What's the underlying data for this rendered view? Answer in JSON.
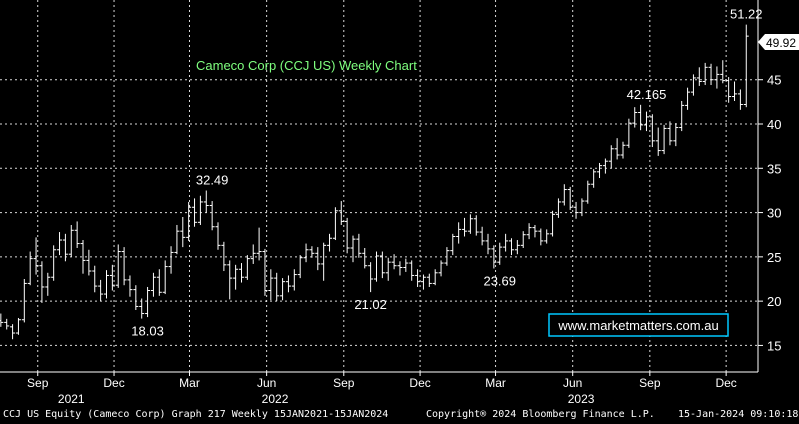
{
  "footer": {
    "left": "CCJ US Equity (Cameco Corp) Graph 217  Weekly 15JAN2021-15JAN2024",
    "center": "Copyright® 2024 Bloomberg Finance L.P.",
    "right": "15-Jan-2024 09:10:18"
  },
  "chart_data": {
    "type": "ohlc-bar",
    "title": "Cameco Corp  (CCJ US) Weekly Chart",
    "watermark": "www.marketmatters.com.au",
    "ylim": [
      12,
      54
    ],
    "xlim": [
      "2021-08-01",
      "2024-01-22"
    ],
    "yticks": [
      15,
      20,
      25,
      30,
      35,
      40,
      45
    ],
    "grid": true,
    "last_price": 49.92,
    "x_month_ticks": [
      {
        "label": "Sep",
        "date": "2021-09-15"
      },
      {
        "label": "Dec",
        "date": "2021-12-15"
      },
      {
        "label": "Mar",
        "date": "2022-03-15"
      },
      {
        "label": "Jun",
        "date": "2022-06-15"
      },
      {
        "label": "Sep",
        "date": "2022-09-15"
      },
      {
        "label": "Dec",
        "date": "2022-12-15"
      },
      {
        "label": "Mar",
        "date": "2023-03-15"
      },
      {
        "label": "Jun",
        "date": "2023-06-15"
      },
      {
        "label": "Sep",
        "date": "2023-09-15"
      },
      {
        "label": "Dec",
        "date": "2023-12-15"
      }
    ],
    "x_year_ticks": [
      {
        "label": "2021",
        "date": "2021-10-25"
      },
      {
        "label": "2022",
        "date": "2022-06-25"
      },
      {
        "label": "2023",
        "date": "2023-06-25"
      }
    ],
    "annotations": [
      {
        "text": "32.49",
        "date": "2022-04-11",
        "value": 32.49,
        "position": "above"
      },
      {
        "text": "18.03",
        "date": "2022-01-24",
        "value": 18.03,
        "position": "below"
      },
      {
        "text": "21.02",
        "date": "2022-10-17",
        "value": 21.02,
        "position": "below"
      },
      {
        "text": "23.69",
        "date": "2023-03-20",
        "value": 23.69,
        "position": "below"
      },
      {
        "text": "42.165",
        "date": "2023-09-11",
        "value": 42.165,
        "position": "above"
      },
      {
        "text": "51.22",
        "date": "2024-01-08",
        "value": 51.22,
        "position": "above"
      }
    ],
    "ohlc": [
      [
        "2021-08-02",
        17.8,
        18.6,
        17.1,
        17.6
      ],
      [
        "2021-08-09",
        17.6,
        18.0,
        16.8,
        17.2
      ],
      [
        "2021-08-16",
        17.1,
        17.4,
        15.7,
        16.4
      ],
      [
        "2021-08-23",
        16.4,
        18.1,
        16.2,
        17.9
      ],
      [
        "2021-08-30",
        17.9,
        22.5,
        17.6,
        22.0
      ],
      [
        "2021-09-06",
        22.0,
        25.6,
        21.8,
        24.8
      ],
      [
        "2021-09-13",
        24.8,
        27.2,
        23.0,
        24.0
      ],
      [
        "2021-09-20",
        24.0,
        24.5,
        19.8,
        21.6
      ],
      [
        "2021-09-27",
        21.6,
        23.2,
        20.6,
        22.7
      ],
      [
        "2021-10-04",
        22.7,
        26.3,
        22.3,
        25.8
      ],
      [
        "2021-10-11",
        25.8,
        27.8,
        25.2,
        26.9
      ],
      [
        "2021-10-18",
        26.9,
        27.6,
        24.5,
        25.3
      ],
      [
        "2021-10-25",
        25.3,
        28.6,
        25.0,
        28.0
      ],
      [
        "2021-11-01",
        28.0,
        29.0,
        26.0,
        26.5
      ],
      [
        "2021-11-08",
        26.5,
        26.9,
        23.1,
        24.6
      ],
      [
        "2021-11-15",
        24.6,
        25.8,
        22.9,
        23.4
      ],
      [
        "2021-11-22",
        23.4,
        24.0,
        21.0,
        21.7
      ],
      [
        "2021-11-29",
        21.7,
        22.4,
        20.0,
        20.8
      ],
      [
        "2021-12-06",
        20.8,
        23.5,
        20.3,
        22.9
      ],
      [
        "2021-12-13",
        22.9,
        24.1,
        21.2,
        21.8
      ],
      [
        "2021-12-20",
        21.8,
        26.4,
        21.5,
        25.6
      ],
      [
        "2021-12-27",
        25.6,
        26.1,
        21.8,
        22.4
      ],
      [
        "2022-01-03",
        22.4,
        22.9,
        20.5,
        21.3
      ],
      [
        "2022-01-10",
        21.3,
        21.8,
        19.0,
        19.4
      ],
      [
        "2022-01-17",
        19.4,
        20.3,
        18.03,
        18.6
      ],
      [
        "2022-01-24",
        18.6,
        21.6,
        18.2,
        21.2
      ],
      [
        "2022-01-31",
        21.2,
        23.2,
        20.5,
        22.7
      ],
      [
        "2022-02-07",
        22.7,
        23.6,
        20.6,
        21.0
      ],
      [
        "2022-02-14",
        21.0,
        24.6,
        20.8,
        23.9
      ],
      [
        "2022-02-21",
        23.9,
        26.2,
        23.1,
        25.5
      ],
      [
        "2022-02-28",
        25.5,
        28.6,
        25.3,
        27.9
      ],
      [
        "2022-03-07",
        27.9,
        29.5,
        26.1,
        27.2
      ],
      [
        "2022-03-14",
        27.2,
        31.2,
        26.8,
        30.6
      ],
      [
        "2022-03-21",
        30.6,
        31.6,
        28.4,
        28.9
      ],
      [
        "2022-03-28",
        28.9,
        31.9,
        28.6,
        31.2
      ],
      [
        "2022-04-04",
        31.2,
        32.49,
        30.0,
        30.8
      ],
      [
        "2022-04-11",
        30.8,
        31.3,
        28.0,
        28.4
      ],
      [
        "2022-04-18",
        28.4,
        28.9,
        25.8,
        26.3
      ],
      [
        "2022-04-25",
        26.3,
        26.7,
        23.4,
        24.1
      ],
      [
        "2022-05-02",
        24.1,
        24.6,
        20.2,
        22.6
      ],
      [
        "2022-05-09",
        22.6,
        24.1,
        21.3,
        23.6
      ],
      [
        "2022-05-16",
        23.6,
        24.3,
        22.1,
        22.7
      ],
      [
        "2022-05-23",
        22.7,
        25.2,
        22.4,
        24.8
      ],
      [
        "2022-05-30",
        24.8,
        26.4,
        24.2,
        25.4
      ],
      [
        "2022-06-06",
        25.4,
        28.3,
        24.6,
        25.6
      ],
      [
        "2022-06-13",
        25.6,
        25.9,
        20.6,
        21.2
      ],
      [
        "2022-06-20",
        21.2,
        23.6,
        20.1,
        22.6
      ],
      [
        "2022-06-27",
        22.6,
        23.2,
        20.0,
        20.6
      ],
      [
        "2022-07-04",
        20.6,
        22.6,
        20.1,
        22.2
      ],
      [
        "2022-07-11",
        22.2,
        22.9,
        21.0,
        21.7
      ],
      [
        "2022-07-18",
        21.7,
        23.6,
        21.2,
        23.0
      ],
      [
        "2022-07-25",
        23.0,
        25.2,
        22.6,
        24.9
      ],
      [
        "2022-08-01",
        24.9,
        26.5,
        24.4,
        25.8
      ],
      [
        "2022-08-08",
        25.8,
        26.2,
        24.9,
        25.4
      ],
      [
        "2022-08-15",
        25.4,
        26.1,
        23.5,
        24.2
      ],
      [
        "2022-08-22",
        24.2,
        26.6,
        22.3,
        26.3
      ],
      [
        "2022-08-29",
        26.3,
        27.6,
        25.6,
        27.1
      ],
      [
        "2022-09-05",
        27.1,
        30.6,
        26.9,
        30.2
      ],
      [
        "2022-09-12",
        30.2,
        31.3,
        28.6,
        29.0
      ],
      [
        "2022-09-19",
        29.0,
        29.4,
        25.4,
        26.0
      ],
      [
        "2022-09-26",
        26.0,
        27.4,
        24.4,
        27.0
      ],
      [
        "2022-10-03",
        27.0,
        27.6,
        24.9,
        25.4
      ],
      [
        "2022-10-10",
        25.4,
        26.0,
        23.7,
        24.0
      ],
      [
        "2022-10-17",
        24.0,
        24.4,
        21.02,
        22.5
      ],
      [
        "2022-10-24",
        22.5,
        25.6,
        22.2,
        25.1
      ],
      [
        "2022-10-31",
        25.1,
        25.6,
        22.6,
        23.2
      ],
      [
        "2022-11-07",
        23.2,
        24.9,
        22.3,
        24.4
      ],
      [
        "2022-11-14",
        24.4,
        25.3,
        23.6,
        24.0
      ],
      [
        "2022-11-21",
        24.0,
        24.5,
        22.9,
        23.8
      ],
      [
        "2022-11-28",
        23.8,
        24.8,
        23.3,
        24.3
      ],
      [
        "2022-12-05",
        24.3,
        24.6,
        22.3,
        22.9
      ],
      [
        "2022-12-12",
        22.9,
        23.6,
        21.6,
        22.2
      ],
      [
        "2022-12-19",
        22.2,
        23.0,
        21.3,
        22.7
      ],
      [
        "2022-12-26",
        22.7,
        23.1,
        21.6,
        22.0
      ],
      [
        "2023-01-02",
        22.0,
        23.6,
        21.8,
        23.2
      ],
      [
        "2023-01-09",
        23.2,
        24.6,
        22.8,
        24.3
      ],
      [
        "2023-01-16",
        24.3,
        26.1,
        24.0,
        25.7
      ],
      [
        "2023-01-23",
        25.7,
        27.6,
        25.2,
        27.3
      ],
      [
        "2023-01-30",
        27.3,
        28.9,
        26.5,
        28.1
      ],
      [
        "2023-02-06",
        28.1,
        29.4,
        27.3,
        27.9
      ],
      [
        "2023-02-13",
        27.9,
        29.8,
        27.6,
        29.3
      ],
      [
        "2023-02-20",
        29.3,
        29.7,
        27.4,
        27.8
      ],
      [
        "2023-02-27",
        27.8,
        28.4,
        26.3,
        26.8
      ],
      [
        "2023-03-06",
        26.8,
        27.6,
        25.3,
        25.9
      ],
      [
        "2023-03-13",
        25.9,
        26.3,
        23.69,
        24.4
      ],
      [
        "2023-03-20",
        24.4,
        26.6,
        24.1,
        26.1
      ],
      [
        "2023-03-27",
        26.1,
        27.6,
        25.6,
        26.8
      ],
      [
        "2023-04-03",
        26.8,
        27.1,
        25.2,
        25.8
      ],
      [
        "2023-04-10",
        25.8,
        26.9,
        25.3,
        26.3
      ],
      [
        "2023-04-17",
        26.3,
        27.9,
        26.0,
        27.5
      ],
      [
        "2023-04-24",
        27.5,
        28.8,
        27.0,
        28.3
      ],
      [
        "2023-05-01",
        28.3,
        28.6,
        27.2,
        27.9
      ],
      [
        "2023-05-08",
        27.9,
        28.2,
        26.3,
        26.8
      ],
      [
        "2023-05-15",
        26.8,
        28.1,
        26.5,
        27.6
      ],
      [
        "2023-05-22",
        27.6,
        30.2,
        27.3,
        29.8
      ],
      [
        "2023-05-29",
        29.8,
        31.6,
        29.4,
        31.2
      ],
      [
        "2023-06-05",
        31.2,
        33.2,
        30.8,
        32.6
      ],
      [
        "2023-06-12",
        32.6,
        32.9,
        30.3,
        30.6
      ],
      [
        "2023-06-19",
        30.6,
        31.2,
        29.3,
        30.0
      ],
      [
        "2023-06-26",
        30.0,
        31.6,
        29.6,
        31.3
      ],
      [
        "2023-07-03",
        31.3,
        33.6,
        31.0,
        33.2
      ],
      [
        "2023-07-10",
        33.2,
        34.9,
        32.8,
        34.6
      ],
      [
        "2023-07-17",
        34.6,
        35.6,
        33.9,
        35.3
      ],
      [
        "2023-07-24",
        35.3,
        36.1,
        34.4,
        35.8
      ],
      [
        "2023-07-31",
        35.8,
        37.6,
        35.0,
        37.2
      ],
      [
        "2023-08-07",
        37.2,
        38.4,
        36.0,
        36.5
      ],
      [
        "2023-08-14",
        36.5,
        38.0,
        36.1,
        37.6
      ],
      [
        "2023-08-21",
        37.6,
        40.6,
        37.3,
        40.1
      ],
      [
        "2023-08-28",
        40.1,
        41.9,
        39.6,
        41.3
      ],
      [
        "2023-09-04",
        41.3,
        42.165,
        39.3,
        39.9
      ],
      [
        "2023-09-11",
        39.9,
        41.4,
        39.2,
        40.8
      ],
      [
        "2023-09-18",
        40.8,
        41.1,
        37.4,
        38.1
      ],
      [
        "2023-09-25",
        38.1,
        39.6,
        36.4,
        37.0
      ],
      [
        "2023-10-02",
        37.0,
        39.9,
        36.6,
        39.5
      ],
      [
        "2023-10-09",
        39.5,
        40.3,
        37.6,
        38.1
      ],
      [
        "2023-10-16",
        38.1,
        40.1,
        37.5,
        39.6
      ],
      [
        "2023-10-23",
        39.6,
        42.6,
        39.2,
        42.1
      ],
      [
        "2023-10-30",
        42.1,
        44.1,
        41.6,
        43.6
      ],
      [
        "2023-11-06",
        43.6,
        45.6,
        43.2,
        45.2
      ],
      [
        "2023-11-13",
        45.2,
        46.4,
        44.3,
        44.8
      ],
      [
        "2023-11-20",
        44.8,
        46.9,
        44.4,
        46.4
      ],
      [
        "2023-11-27",
        46.4,
        46.8,
        44.4,
        45.0
      ],
      [
        "2023-12-04",
        45.0,
        46.5,
        44.0,
        45.6
      ],
      [
        "2023-12-11",
        45.6,
        47.2,
        44.6,
        44.9
      ],
      [
        "2023-12-18",
        44.9,
        45.3,
        42.4,
        43.1
      ],
      [
        "2023-12-25",
        43.1,
        44.8,
        42.6,
        43.4
      ],
      [
        "2024-01-01",
        43.4,
        43.9,
        41.6,
        42.2
      ],
      [
        "2024-01-08",
        42.2,
        51.22,
        41.9,
        49.92
      ]
    ]
  },
  "colors": {
    "background": "#000000",
    "bars": "#ffffff",
    "grid": "#ffffff",
    "title": "#7fff7f",
    "price_tag_bg": "#ffffff",
    "watermark_border": "#00c8ff"
  }
}
